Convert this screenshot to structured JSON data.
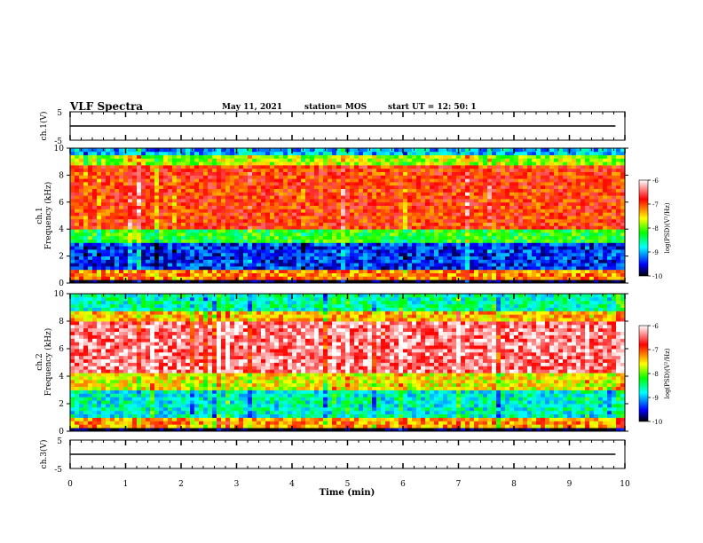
{
  "header": {
    "title": "VLF Spectra",
    "date": "May 11, 2021",
    "station": "station= MOS",
    "start": "start  UT =   12: 50: 1"
  },
  "chart_data": [
    {
      "type": "line",
      "ylabel": "ch.1(V)",
      "ylim": [
        -5,
        5
      ],
      "yticks": [
        "5",
        "-5"
      ],
      "xlim": [
        0,
        10
      ],
      "series": [
        {
          "values_note": "",
          "x": [
            0,
            9.83
          ],
          "y": [
            0,
            0
          ]
        }
      ]
    },
    {
      "type": "heatmap",
      "ylabel": "ch.1\nFrequency (kHz)",
      "ylabel_lines": [
        "ch.1",
        "Frequency (kHz)"
      ],
      "ylim": [
        0,
        10
      ],
      "yticks": [
        "0",
        "2",
        "4",
        "6",
        "8",
        "10"
      ],
      "xlim": [
        0,
        10
      ],
      "colorbar": {
        "label": "log(PSD)(V²/Hz)",
        "ticks": [
          "-6",
          "-7",
          "-8",
          "-9",
          "-10"
        ],
        "range": [
          -10,
          -6
        ],
        "colors": [
          "#000000",
          "#0000ff",
          "#00ffff",
          "#00ff00",
          "#ffff00",
          "#ff0000",
          "#ffffff"
        ]
      },
      "bands_log_psd": [
        {
          "f": [
            0,
            0.3
          ],
          "v": -10
        },
        {
          "f": [
            0.3,
            0.9
          ],
          "v": -7.2
        },
        {
          "f": [
            0.9,
            3.0
          ],
          "v": -9.4
        },
        {
          "f": [
            3.0,
            4.0
          ],
          "v": -8.2
        },
        {
          "f": [
            4.0,
            8.8
          ],
          "v": -6.9
        },
        {
          "f": [
            8.8,
            9.4
          ],
          "v": -7.8
        },
        {
          "f": [
            9.4,
            10
          ],
          "v": -9.0
        }
      ]
    },
    {
      "type": "heatmap",
      "ylabel_lines": [
        "ch.2",
        "Frequency (kHz)"
      ],
      "ylim": [
        0,
        10
      ],
      "yticks": [
        "0",
        "2",
        "4",
        "6",
        "8",
        "10"
      ],
      "xlim": [
        0,
        10
      ],
      "colorbar": {
        "label": "log(PSD)(V²/Hz)",
        "ticks": [
          "-6",
          "-7",
          "-8",
          "-9",
          "-10"
        ],
        "range": [
          -10,
          -6
        ]
      },
      "bands_log_psd": [
        {
          "f": [
            0,
            0.3
          ],
          "v": -10
        },
        {
          "f": [
            0.3,
            1.0
          ],
          "v": -7.3
        },
        {
          "f": [
            1.0,
            3.0
          ],
          "v": -8.7
        },
        {
          "f": [
            3.0,
            4.2
          ],
          "v": -7.6
        },
        {
          "f": [
            4.2,
            8.0
          ],
          "v": -6.4
        },
        {
          "f": [
            8.0,
            8.8
          ],
          "v": -7.4
        },
        {
          "f": [
            8.8,
            10
          ],
          "v": -8.6
        }
      ]
    },
    {
      "type": "line",
      "ylabel": "ch.3(V)",
      "ylim": [
        -5,
        5
      ],
      "yticks": [
        "5",
        "-5"
      ],
      "xlabel": "Time (min)",
      "xlim": [
        0,
        10
      ],
      "xticks": [
        "0",
        "1",
        "2",
        "3",
        "4",
        "5",
        "6",
        "7",
        "8",
        "9",
        "10"
      ],
      "series": [
        {
          "x": [
            0,
            9.83
          ],
          "y": [
            0,
            0
          ]
        }
      ]
    }
  ]
}
